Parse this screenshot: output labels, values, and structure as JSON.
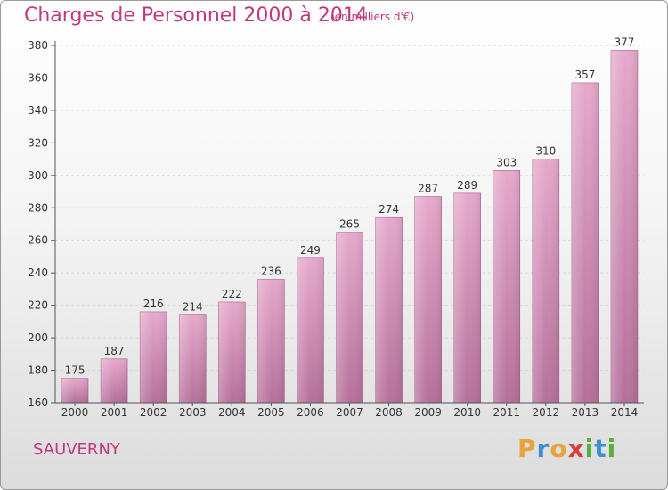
{
  "chart_data": {
    "type": "bar",
    "title": "Charges de Personnel 2000 à 2014",
    "subtitle": "(en milliers d'€)",
    "categories": [
      "2000",
      "2001",
      "2002",
      "2003",
      "2004",
      "2005",
      "2006",
      "2007",
      "2008",
      "2009",
      "2010",
      "2011",
      "2012",
      "2013",
      "2014"
    ],
    "values": [
      175,
      187,
      216,
      214,
      222,
      236,
      249,
      265,
      274,
      287,
      289,
      303,
      310,
      357,
      377
    ],
    "ylim": [
      160,
      380
    ],
    "yticks": [
      160,
      180,
      200,
      220,
      240,
      260,
      280,
      300,
      320,
      340,
      360,
      380
    ],
    "grid": true,
    "bar_color": "#d98ab8"
  },
  "commune": "SAUVERNY",
  "logo": {
    "letters": [
      "P",
      "r",
      "o",
      "x",
      "i",
      "t",
      "i"
    ],
    "colors": [
      "#e8a33a",
      "#3c8fd0",
      "#e8a33a",
      "#d93a3a",
      "#5aaf3a",
      "#3c8fd0",
      "#5aaf3a"
    ]
  }
}
